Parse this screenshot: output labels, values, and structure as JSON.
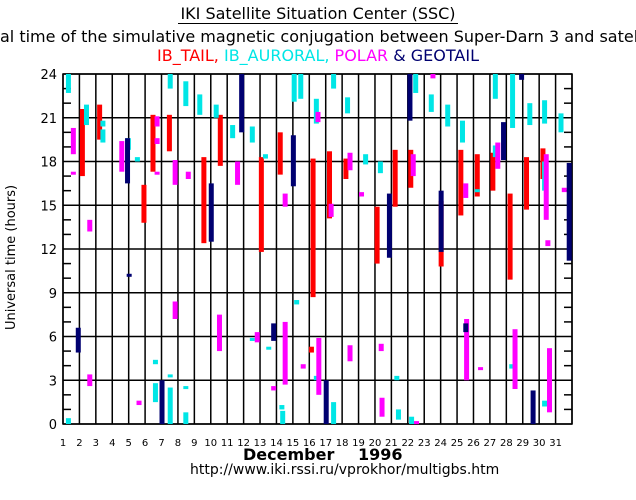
{
  "header": {
    "title": "IKI Satellite Situation Center (SSC)",
    "subtitle": "al time of the simulative magnetic conjugation between Super-Darn 3 and satellit",
    "legend": [
      {
        "label": "IB_TAIL,",
        "color": "#ff0000"
      },
      {
        "label": " IB_AURORAL,",
        "color": "#00e6e6"
      },
      {
        "label": " POLAR",
        "color": "#ff00ff"
      },
      {
        "label": " & ",
        "color": "#000070"
      },
      {
        "label": "GEOTAIL",
        "color": "#000070"
      }
    ]
  },
  "footer": {
    "month": "December",
    "year": "1996",
    "url": "http://www.iki.rssi.ru/vprokhor/multigbs.htm"
  },
  "chart_data": {
    "type": "bar",
    "subtype": "floating-interval",
    "title": "IKI Satellite Situation Center (SSC)",
    "xlabel": "December 1996",
    "ylabel": "Universal time (hours)",
    "xlim": [
      1,
      32
    ],
    "ylim": [
      0,
      24
    ],
    "x_ticks": [
      1,
      2,
      3,
      4,
      5,
      6,
      7,
      8,
      9,
      10,
      11,
      12,
      13,
      14,
      15,
      16,
      17,
      18,
      19,
      20,
      21,
      22,
      23,
      24,
      25,
      26,
      27,
      28,
      29,
      30,
      31
    ],
    "y_ticks": [
      0,
      3,
      6,
      9,
      12,
      15,
      18,
      21,
      24
    ],
    "grid": true,
    "series": [
      {
        "name": "IB_TAIL",
        "color": "#ff0000",
        "intervals": [
          [
            2.15,
            17.0,
            21.6
          ],
          [
            3.2,
            19.5,
            21.9
          ],
          [
            5.9,
            13.8,
            16.4
          ],
          [
            6.45,
            17.3,
            21.2
          ],
          [
            7.45,
            18.7,
            21.2
          ],
          [
            9.55,
            12.4,
            18.3
          ],
          [
            10.55,
            17.7,
            21.2
          ],
          [
            13.05,
            11.8,
            18.3
          ],
          [
            14.2,
            17.1,
            20.0
          ],
          [
            16.2,
            8.7,
            18.2
          ],
          [
            16.1,
            4.9,
            5.3
          ],
          [
            17.2,
            14.1,
            18.7
          ],
          [
            18.2,
            16.8,
            18.2
          ],
          [
            20.1,
            11.0,
            14.9
          ],
          [
            21.2,
            14.9,
            18.8
          ],
          [
            22.15,
            16.2,
            18.8
          ],
          [
            24.0,
            10.8,
            15.3
          ],
          [
            25.2,
            14.3,
            18.8
          ],
          [
            26.2,
            15.6,
            18.5
          ],
          [
            27.15,
            16.0,
            18.6
          ],
          [
            28.2,
            9.9,
            15.8
          ],
          [
            29.2,
            14.7,
            18.3
          ],
          [
            30.2,
            16.8,
            18.9
          ]
        ]
      },
      {
        "name": "IB_AURORAL",
        "color": "#00e6e6",
        "intervals": [
          [
            1.3,
            22.7,
            24.0
          ],
          [
            1.3,
            0.0,
            0.4
          ],
          [
            2.4,
            20.5,
            21.9
          ],
          [
            3.4,
            20.4,
            20.8
          ],
          [
            3.4,
            19.3,
            20.2
          ],
          [
            4.95,
            18.8,
            19.6
          ],
          [
            5.5,
            18.0,
            18.3
          ],
          [
            6.6,
            4.1,
            4.4
          ],
          [
            6.6,
            1.5,
            2.8
          ],
          [
            7.5,
            0.0,
            2.5
          ],
          [
            7.5,
            3.2,
            3.4
          ],
          [
            7.5,
            23.0,
            24.0
          ],
          [
            8.45,
            2.4,
            2.6
          ],
          [
            8.45,
            0.0,
            0.8
          ],
          [
            8.45,
            21.8,
            23.5
          ],
          [
            9.3,
            21.2,
            22.6
          ],
          [
            10.3,
            21.0,
            21.9
          ],
          [
            11.3,
            19.6,
            20.5
          ],
          [
            12.5,
            19.3,
            20.4
          ],
          [
            12.5,
            5.7,
            5.9
          ],
          [
            13.5,
            5.1,
            5.3
          ],
          [
            13.3,
            18.2,
            18.5
          ],
          [
            14.3,
            1.0,
            1.3
          ],
          [
            14.35,
            0.0,
            0.9
          ],
          [
            15.2,
            8.2,
            8.5
          ],
          [
            15.05,
            22.1,
            24.0
          ],
          [
            15.45,
            22.3,
            24.0
          ],
          [
            16.4,
            3.0,
            3.3
          ],
          [
            16.4,
            20.6,
            22.3
          ],
          [
            17.45,
            0.0,
            1.5
          ],
          [
            17.45,
            23.0,
            24.0
          ],
          [
            18.3,
            21.3,
            22.4
          ],
          [
            19.4,
            17.8,
            18.5
          ],
          [
            20.3,
            17.2,
            18.0
          ],
          [
            21.3,
            3.0,
            3.3
          ],
          [
            21.4,
            0.3,
            1.0
          ],
          [
            22.2,
            0.0,
            0.5
          ],
          [
            22.45,
            22.7,
            24.0
          ],
          [
            23.4,
            21.4,
            22.6
          ],
          [
            24.4,
            20.4,
            21.9
          ],
          [
            25.3,
            19.3,
            20.8
          ],
          [
            26.2,
            15.9,
            16.1
          ],
          [
            27.3,
            18.3,
            19.1
          ],
          [
            27.3,
            22.3,
            24.0
          ],
          [
            28.3,
            3.8,
            4.1
          ],
          [
            28.35,
            20.3,
            24.0
          ],
          [
            29.4,
            20.5,
            22.0
          ],
          [
            30.3,
            1.2,
            1.6
          ],
          [
            30.3,
            20.6,
            22.2
          ],
          [
            30.3,
            16.0,
            18.0
          ],
          [
            31.3,
            20.0,
            21.3
          ]
        ]
      },
      {
        "name": "POLAR",
        "color": "#ff00ff",
        "intervals": [
          [
            1.6,
            18.5,
            20.3
          ],
          [
            1.6,
            17.1,
            17.3
          ],
          [
            2.6,
            13.2,
            14.0
          ],
          [
            2.6,
            2.6,
            3.4
          ],
          [
            4.55,
            17.3,
            19.4
          ],
          [
            5.6,
            1.3,
            1.6
          ],
          [
            6.7,
            19.2,
            19.6
          ],
          [
            6.7,
            17.1,
            17.3
          ],
          [
            6.7,
            20.4,
            21.1
          ],
          [
            7.8,
            16.4,
            18.1
          ],
          [
            7.8,
            7.2,
            8.4
          ],
          [
            8.6,
            16.8,
            17.3
          ],
          [
            10.5,
            5.0,
            7.5
          ],
          [
            11.6,
            16.4,
            18.0
          ],
          [
            12.8,
            5.6,
            6.3
          ],
          [
            13.8,
            2.3,
            2.6
          ],
          [
            14.5,
            14.9,
            15.8
          ],
          [
            14.5,
            2.7,
            7.0
          ],
          [
            15.6,
            3.8,
            4.1
          ],
          [
            16.55,
            2.0,
            5.9
          ],
          [
            16.5,
            20.7,
            21.4
          ],
          [
            17.3,
            14.2,
            15.1
          ],
          [
            18.45,
            4.3,
            5.4
          ],
          [
            18.45,
            17.4,
            18.6
          ],
          [
            19.15,
            15.6,
            15.9
          ],
          [
            20.35,
            5.0,
            5.5
          ],
          [
            20.4,
            0.5,
            1.8
          ],
          [
            22.3,
            17.0,
            18.5
          ],
          [
            22.5,
            0.0,
            0.2
          ],
          [
            23.5,
            23.7,
            24.0
          ],
          [
            25.5,
            15.5,
            16.5
          ],
          [
            25.55,
            3.0,
            7.2
          ],
          [
            26.4,
            3.7,
            3.9
          ],
          [
            27.45,
            17.5,
            19.3
          ],
          [
            28.5,
            2.4,
            6.5
          ],
          [
            30.4,
            14.0,
            18.5
          ],
          [
            30.5,
            12.2,
            12.6
          ],
          [
            30.6,
            0.8,
            5.2
          ],
          [
            31.5,
            15.9,
            16.2
          ]
        ]
      },
      {
        "name": "GEOTAIL",
        "color": "#000070",
        "intervals": [
          [
            1.9,
            4.9,
            6.6
          ],
          [
            4.9,
            16.5,
            19.6
          ],
          [
            5.0,
            10.1,
            10.3
          ],
          [
            7.0,
            0.0,
            3.0
          ],
          [
            10.0,
            12.5,
            16.5
          ],
          [
            11.85,
            20.0,
            24.0
          ],
          [
            13.8,
            5.7,
            6.9
          ],
          [
            15.0,
            16.3,
            19.8
          ],
          [
            17.0,
            0.0,
            3.0
          ],
          [
            20.85,
            11.4,
            15.8
          ],
          [
            22.1,
            20.8,
            24.0
          ],
          [
            25.5,
            6.3,
            6.9
          ],
          [
            27.8,
            18.1,
            20.7
          ],
          [
            28.9,
            23.6,
            24.0
          ],
          [
            29.6,
            0.0,
            2.3
          ],
          [
            31.8,
            11.2,
            17.9
          ],
          [
            24.0,
            11.8,
            16.0
          ]
        ]
      }
    ]
  }
}
